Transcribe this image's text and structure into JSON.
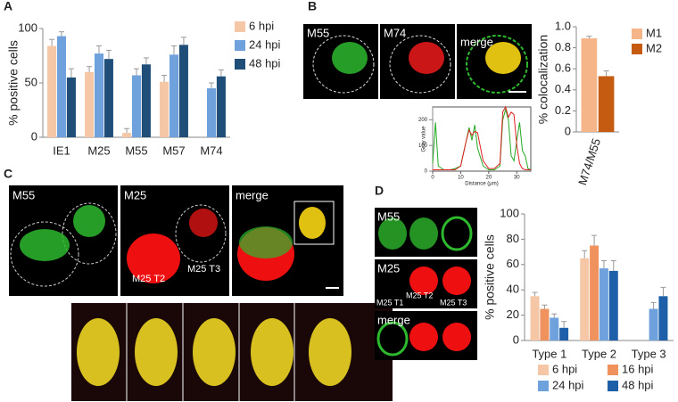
{
  "panels": {
    "a": "A",
    "b": "B",
    "c": "C",
    "d": "D"
  },
  "images": {
    "b": [
      "M55",
      "M74",
      "merge"
    ],
    "c": [
      "M55",
      "M25",
      "merge",
      "M25 T2",
      "M25 T3"
    ],
    "d": [
      "M55",
      "M25",
      "merge",
      "M25 T1",
      "M25 T2",
      "M25 T3"
    ]
  },
  "chart_data": [
    {
      "type": "bar",
      "ylabel": "% positive cells",
      "categories": [
        "IE1",
        "M25",
        "M55",
        "M57",
        "M74"
      ],
      "series": [
        {
          "name": "6 hpi",
          "color": "#f6c7a6",
          "values": [
            84,
            60,
            4,
            51,
            null
          ],
          "errors": [
            6,
            5,
            4,
            6,
            null
          ]
        },
        {
          "name": "24 hpi",
          "color": "#6fa1dc",
          "values": [
            93,
            77,
            57,
            76,
            45
          ],
          "errors": [
            4,
            7,
            6,
            8,
            5
          ]
        },
        {
          "name": "48 hpi",
          "color": "#1f4e79",
          "values": [
            55,
            72,
            67,
            85,
            56
          ],
          "errors": [
            8,
            8,
            6,
            7,
            6
          ]
        }
      ],
      "ylim": [
        0,
        100
      ],
      "yticks": [
        0,
        50,
        100
      ],
      "legend": "right"
    },
    {
      "type": "bar",
      "ylabel": "% colocalization",
      "categories": [
        "M74/M55"
      ],
      "series": [
        {
          "name": "M1",
          "color": "#f5b589",
          "values": [
            0.89
          ],
          "errors": [
            0.02
          ]
        },
        {
          "name": "M2",
          "color": "#c55a11",
          "values": [
            0.53
          ],
          "errors": [
            0.05
          ]
        }
      ],
      "ylim": [
        0,
        1
      ],
      "yticks": [
        0,
        0.2,
        0.4,
        0.6,
        0.8,
        {
          "value": 1,
          "label": "1.0"
        }
      ],
      "legend": "top-right"
    },
    {
      "type": "line",
      "xlabel": "Distance (μm)",
      "ylabel": "Gray value",
      "x": [
        0,
        1,
        2,
        4,
        6,
        8,
        10,
        12,
        13,
        14,
        15,
        16,
        18,
        20,
        22,
        24,
        25,
        26,
        27,
        28,
        29,
        30,
        31,
        32,
        33,
        34,
        35
      ],
      "series": [
        {
          "name": "M55",
          "color": "#22aa22",
          "values": [
            30,
            190,
            20,
            5,
            5,
            10,
            20,
            120,
            170,
            120,
            180,
            90,
            20,
            5,
            5,
            20,
            200,
            240,
            200,
            60,
            40,
            120,
            190,
            80,
            60,
            10,
            5
          ]
        },
        {
          "name": "M74",
          "color": "#e02020",
          "values": [
            5,
            5,
            5,
            5,
            5,
            5,
            20,
            120,
            160,
            140,
            155,
            150,
            40,
            10,
            10,
            30,
            230,
            250,
            210,
            230,
            220,
            100,
            30,
            10,
            5,
            5,
            5
          ]
        }
      ],
      "xlim": [
        0,
        35
      ],
      "xticks": [
        0,
        10,
        20,
        30
      ],
      "ylim": [
        0,
        250
      ],
      "yticks": [
        0,
        100,
        200
      ]
    },
    {
      "type": "bar",
      "ylabel": "% positive cells",
      "categories": [
        "Type 1",
        "Type 2",
        "Type 3"
      ],
      "series": [
        {
          "name": "6 hpi",
          "color": "#f6c7a6",
          "values": [
            35,
            65,
            null
          ],
          "errors": [
            3,
            6,
            null
          ]
        },
        {
          "name": "16 hpi",
          "color": "#f0925e",
          "values": [
            25,
            75,
            null
          ],
          "errors": [
            3,
            8,
            null
          ]
        },
        {
          "name": "24 hpi",
          "color": "#6fa1dc",
          "values": [
            18,
            57,
            25
          ],
          "errors": [
            3,
            6,
            5
          ]
        },
        {
          "name": "48 hpi",
          "color": "#1d5fa8",
          "values": [
            10,
            55,
            35
          ],
          "errors": [
            5,
            8,
            7
          ]
        }
      ],
      "ylim": [
        0,
        100
      ],
      "yticks": [
        0,
        20,
        40,
        60,
        80,
        100
      ],
      "legend": "bottom"
    }
  ]
}
